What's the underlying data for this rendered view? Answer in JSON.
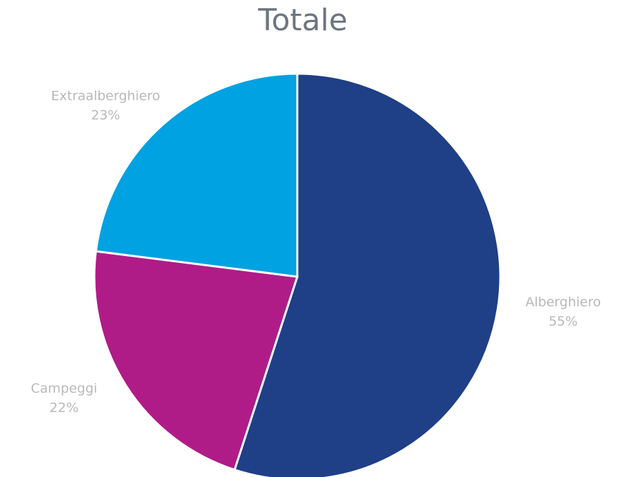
{
  "chart_data": {
    "type": "pie",
    "title": "Totale",
    "categories": [
      "Alberghiero",
      "Campeggi",
      "Extraalberghiero"
    ],
    "values": [
      55,
      22,
      23
    ],
    "value_labels": [
      "55%",
      "22%",
      "23%"
    ],
    "colors": [
      "#1f3f87",
      "#b01c87",
      "#00a2e1"
    ]
  }
}
